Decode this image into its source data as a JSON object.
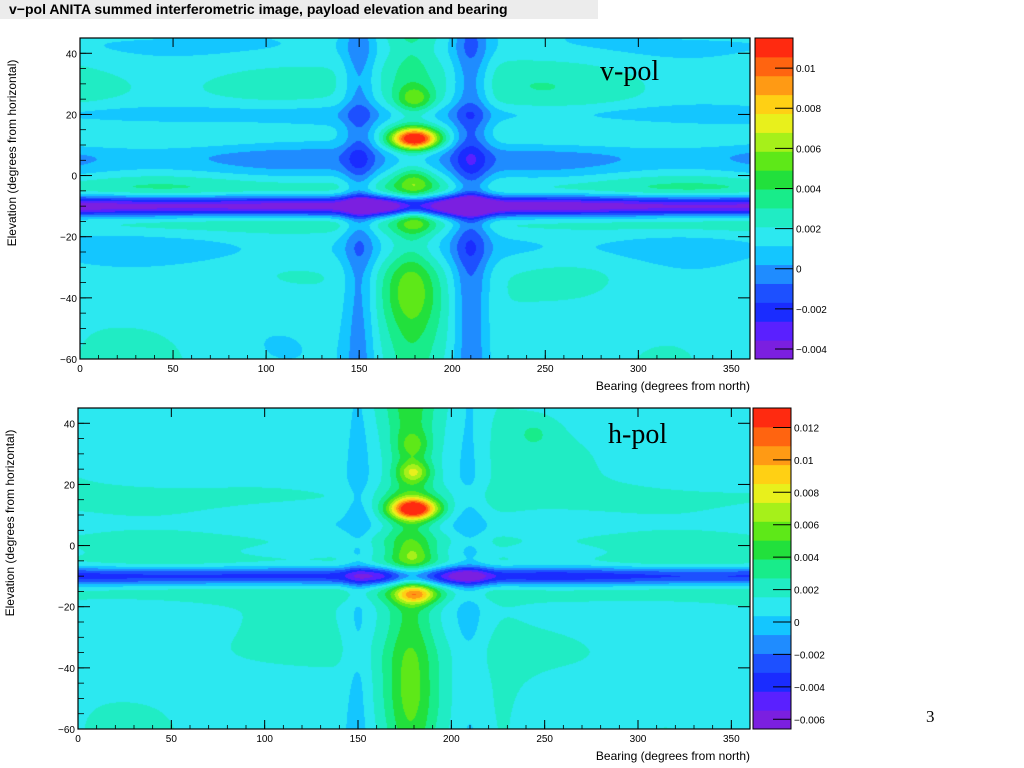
{
  "title": "v−pol ANITA summed interferometric image, payload elevation and bearing",
  "page_number": "3",
  "chart_data": [
    {
      "type": "heatmap",
      "label": "v-pol",
      "xlabel": "Bearing (degrees from north)",
      "ylabel": "Elevation (degrees from horizontal)",
      "xlim": [
        0,
        360
      ],
      "ylim": [
        -60,
        45
      ],
      "xticks": [
        0,
        50,
        100,
        150,
        200,
        250,
        300,
        350
      ],
      "yticks": [
        -60,
        -40,
        -20,
        0,
        20,
        40
      ],
      "colorbar": {
        "range": [
          -0.0045,
          0.0115
        ],
        "ticks": [
          -0.004,
          -0.002,
          0,
          0.002,
          0.004,
          0.006,
          0.008,
          0.01
        ],
        "tick_labels": [
          "−0.004",
          "−0.002",
          "0",
          "0.002",
          "0.004",
          "0.006",
          "0.008",
          "0.01"
        ]
      },
      "baseline": 0.0018,
      "hbands": [
        {
          "y": -10,
          "w": 2.5,
          "a": -0.0062
        },
        {
          "y": 3,
          "w": 2.5,
          "a": -0.0012
        },
        {
          "y": 7,
          "w": 2.5,
          "a": -0.0014
        },
        {
          "y": 20,
          "w": 2.5,
          "a": -0.0012
        },
        {
          "y": -5,
          "w": 2.5,
          "a": 0.0012
        },
        {
          "y": -15,
          "w": 2.5,
          "a": 0.001
        },
        {
          "y": -24,
          "w": 4,
          "a": -0.001
        },
        {
          "y": 30,
          "w": 6,
          "a": 0.0006
        },
        {
          "y": 42,
          "w": 4,
          "a": -0.0006
        }
      ],
      "vbands": [
        {
          "x": 178,
          "w": 9,
          "a": 0.0014
        },
        {
          "x": 150,
          "w": 6,
          "a": -0.002
        },
        {
          "x": 210,
          "w": 7,
          "a": -0.0026
        }
      ],
      "blobs": [
        {
          "x": 180,
          "y": 12,
          "sx": 9,
          "sy": 2.4,
          "a": 0.0098
        },
        {
          "x": 180,
          "y": 25,
          "sx": 7,
          "sy": 3,
          "a": 0.0026
        },
        {
          "x": 180,
          "y": -2,
          "sx": 7,
          "sy": 3,
          "a": 0.002
        },
        {
          "x": 180,
          "y": -15,
          "sx": 7,
          "sy": 3,
          "a": 0.002
        },
        {
          "x": 178,
          "y": -37,
          "sx": 12,
          "sy": 9,
          "a": 0.0024
        },
        {
          "x": 160,
          "y": -10,
          "sx": 10,
          "sy": 2.2,
          "a": -0.002
        },
        {
          "x": 207,
          "y": -10,
          "sx": 10,
          "sy": 2.2,
          "a": -0.0022
        },
        {
          "x": 280,
          "y": -30,
          "sx": 30,
          "sy": 9,
          "a": 0.0006
        },
        {
          "x": 40,
          "y": -28,
          "sx": 25,
          "sy": 8,
          "a": 0.0004
        }
      ]
    },
    {
      "type": "heatmap",
      "label": "h-pol",
      "xlabel": "Bearing (degrees from north)",
      "ylabel": "Elevation (degrees from horizontal)",
      "xlim": [
        0,
        360
      ],
      "ylim": [
        -60,
        45
      ],
      "xticks": [
        0,
        50,
        100,
        150,
        200,
        250,
        300,
        350
      ],
      "yticks": [
        -60,
        -40,
        -20,
        0,
        20,
        40
      ],
      "colorbar": {
        "range": [
          -0.0066,
          0.0132
        ],
        "ticks": [
          -0.006,
          -0.004,
          -0.002,
          0,
          0.002,
          0.004,
          0.006,
          0.008,
          0.01,
          0.012
        ],
        "tick_labels": [
          "−0.006",
          "−0.004",
          "−0.002",
          "0",
          "0.002",
          "0.004",
          "0.006",
          "0.008",
          "0.01",
          "0.012"
        ]
      },
      "baseline": 0.0012,
      "hbands": [
        {
          "y": -10,
          "w": 2.3,
          "a": -0.005
        },
        {
          "y": -6,
          "w": 2.0,
          "a": 0.001
        },
        {
          "y": 2,
          "w": 2.5,
          "a": 0.0007
        },
        {
          "y": 6,
          "w": 2.5,
          "a": -0.0006
        },
        {
          "y": 16,
          "w": 3,
          "a": 0.0006
        },
        {
          "y": -15,
          "w": 2.5,
          "a": 0.0012
        },
        {
          "y": -35,
          "w": 5,
          "a": 0.0004
        }
      ],
      "vbands": [
        {
          "x": 178,
          "w": 9,
          "a": 0.003
        },
        {
          "x": 150,
          "w": 5,
          "a": -0.0012
        },
        {
          "x": 210,
          "w": 7,
          "a": -0.0014
        },
        {
          "x": 222,
          "w": 14,
          "a": 0.0004
        }
      ],
      "blobs": [
        {
          "x": 180,
          "y": 12,
          "sx": 9,
          "sy": 2.4,
          "a": 0.0112
        },
        {
          "x": 180,
          "y": 24,
          "sx": 6,
          "sy": 2.4,
          "a": 0.004
        },
        {
          "x": 180,
          "y": 33,
          "sx": 6,
          "sy": 3,
          "a": 0.0018
        },
        {
          "x": 181,
          "y": -16,
          "sx": 8,
          "sy": 2.2,
          "a": 0.006
        },
        {
          "x": 180,
          "y": -3,
          "sx": 7,
          "sy": 2.5,
          "a": 0.0018
        },
        {
          "x": 160,
          "y": -10,
          "sx": 10,
          "sy": 2,
          "a": -0.002
        },
        {
          "x": 207,
          "y": -10,
          "sx": 10,
          "sy": 2,
          "a": -0.0026
        },
        {
          "x": 245,
          "y": 37,
          "sx": 8,
          "sy": 4,
          "a": 0.0012
        },
        {
          "x": 178,
          "y": -45,
          "sx": 12,
          "sy": 10,
          "a": 0.001
        }
      ]
    }
  ],
  "palette": [
    "#7b1fe0",
    "#5a20ff",
    "#1a2cff",
    "#1d50ff",
    "#1f8cff",
    "#14c6ff",
    "#2ce8f0",
    "#20ecc4",
    "#18ec8a",
    "#22e03c",
    "#5ee818",
    "#a6f01a",
    "#e8f01c",
    "#ffd014",
    "#ff9a14",
    "#ff6410",
    "#ff2a10"
  ]
}
